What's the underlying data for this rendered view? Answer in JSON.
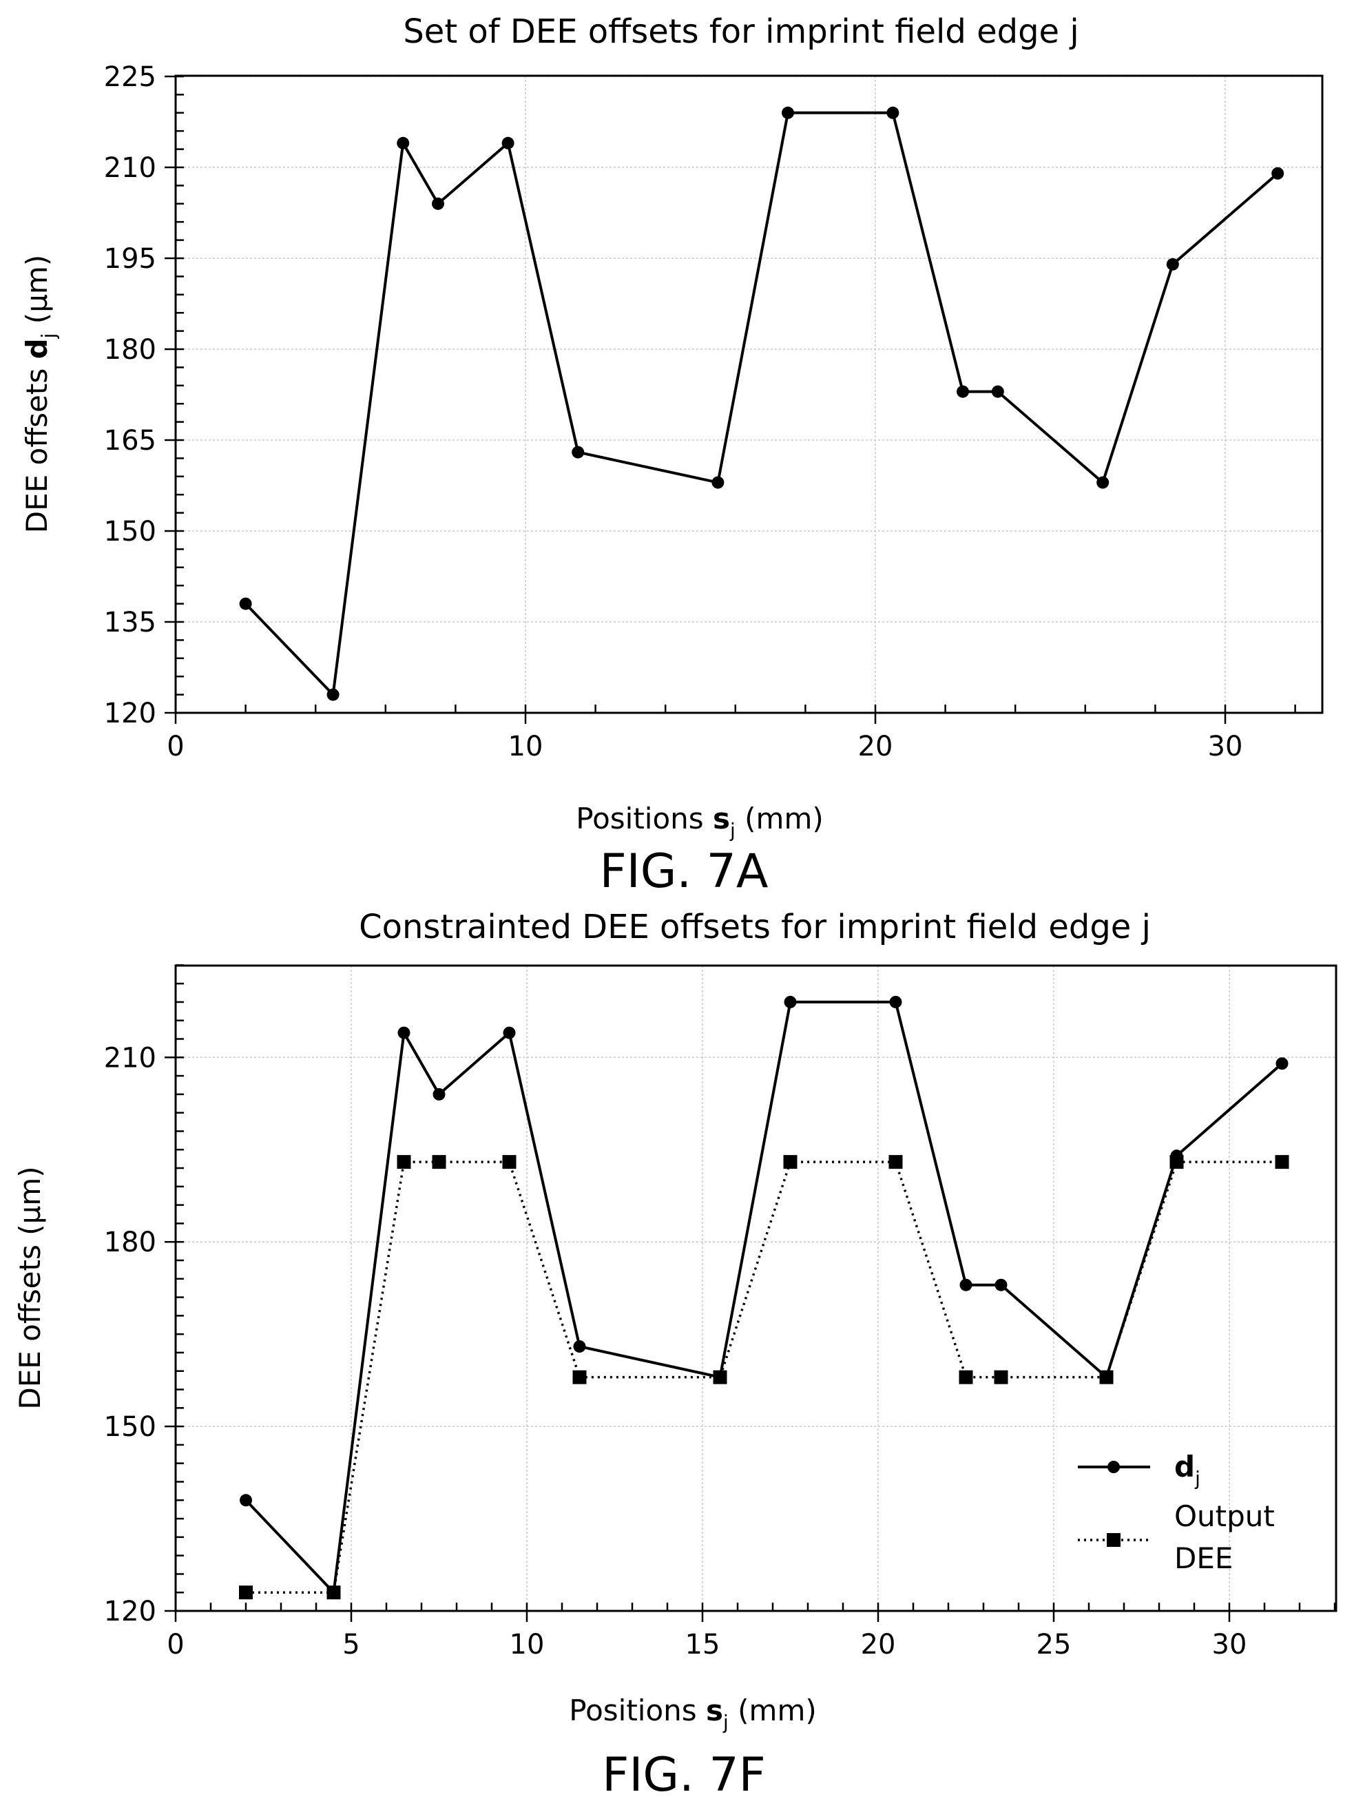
{
  "chart_data": [
    {
      "type": "line",
      "title": "Set of DEE offsets for imprint field edge j",
      "xlabel_prefix": "Positions ",
      "xlabel_var": "s",
      "xlabel_sub": "j",
      "xlabel_suffix": " (mm)",
      "ylabel_prefix": "DEE offsets ",
      "ylabel_var": "d",
      "ylabel_sub": "j",
      "ylabel_suffix": " (μm)",
      "figure_label": "FIG. 7A",
      "xlim": [
        0,
        33
      ],
      "ylim": [
        120,
        225
      ],
      "xticks": [
        0,
        10,
        20,
        30
      ],
      "yticks": [
        120,
        135,
        150,
        165,
        180,
        195,
        210,
        225
      ],
      "grid": true,
      "series": [
        {
          "marker": "circle",
          "style": "solid",
          "x": [
            2,
            4.5,
            6.5,
            7.5,
            9.5,
            11.5,
            15.5,
            17.5,
            20.5,
            22.5,
            23.5,
            26.5,
            28.5,
            31.5
          ],
          "values": [
            138,
            123,
            214,
            204,
            214,
            163,
            158,
            219,
            219,
            173,
            173,
            158,
            194,
            209
          ]
        }
      ]
    },
    {
      "type": "line",
      "title": "Constrainted DEE offsets for imprint field edge j",
      "xlabel_prefix": "Positions ",
      "xlabel_var": "s",
      "xlabel_sub": "j",
      "xlabel_suffix": " (mm)",
      "ylabel": "DEE offsets (μm)",
      "figure_label": "FIG. 7F",
      "xlim": [
        0,
        33
      ],
      "ylim": [
        120,
        225
      ],
      "xticks": [
        0,
        5,
        10,
        15,
        20,
        25,
        30
      ],
      "yticks": [
        120,
        150,
        180,
        210
      ],
      "grid": true,
      "legend_position": "lower-right",
      "series": [
        {
          "name_var": "d",
          "name_sub": "j",
          "marker": "circle",
          "style": "solid",
          "x": [
            2,
            4.5,
            6.5,
            7.5,
            9.5,
            11.5,
            15.5,
            17.5,
            20.5,
            22.5,
            23.5,
            26.5,
            28.5,
            31.5
          ],
          "values": [
            138,
            123,
            214,
            204,
            214,
            163,
            158,
            219,
            219,
            173,
            173,
            158,
            194,
            209
          ]
        },
        {
          "name_line1": "Output",
          "name_line2": "DEE",
          "marker": "square",
          "style": "dotted",
          "x": [
            2,
            4.5,
            6.5,
            7.5,
            9.5,
            11.5,
            15.5,
            17.5,
            20.5,
            22.5,
            23.5,
            26.5,
            28.5,
            31.5
          ],
          "values": [
            123,
            123,
            193,
            193,
            193,
            158,
            158,
            193,
            193,
            158,
            158,
            158,
            193,
            193
          ]
        }
      ]
    }
  ]
}
